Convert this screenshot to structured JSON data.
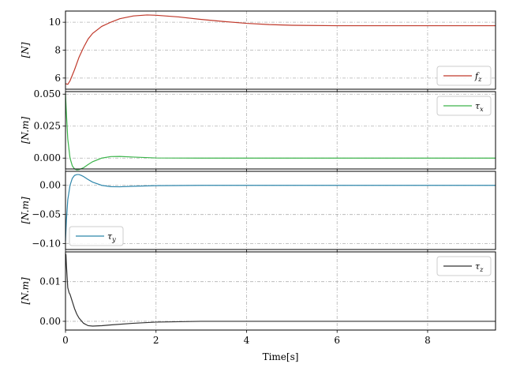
{
  "chart_data": [
    {
      "type": "line",
      "ylabel": "[N]",
      "xlim": [
        0,
        9.5
      ],
      "ylim": [
        5.2,
        10.8
      ],
      "yticks": [
        6,
        8,
        10
      ],
      "ytick_labels": [
        "6",
        "8",
        "10"
      ],
      "grid": true,
      "legend_position": "bottom-right",
      "series": [
        {
          "name": "f_z",
          "legend": "fz",
          "color": "#c0392b",
          "x": [
            0,
            0.05,
            0.1,
            0.2,
            0.3,
            0.4,
            0.5,
            0.6,
            0.8,
            1.0,
            1.2,
            1.5,
            1.8,
            2.0,
            2.5,
            3.0,
            3.5,
            4.0,
            4.5,
            5.0,
            6.0,
            7.0,
            8.0,
            9.5
          ],
          "y": [
            5.6,
            5.55,
            5.8,
            6.6,
            7.5,
            8.2,
            8.8,
            9.2,
            9.7,
            10.0,
            10.25,
            10.45,
            10.52,
            10.5,
            10.38,
            10.2,
            10.05,
            9.92,
            9.83,
            9.78,
            9.75,
            9.75,
            9.75,
            9.75
          ]
        }
      ]
    },
    {
      "type": "line",
      "ylabel": "[N.m]",
      "xlim": [
        0,
        9.5
      ],
      "ylim": [
        -0.0085,
        0.052
      ],
      "yticks": [
        0.0,
        0.025,
        0.05
      ],
      "ytick_labels": [
        "0.000",
        "0.025",
        "0.050"
      ],
      "grid": true,
      "legend_position": "top-right",
      "series": [
        {
          "name": "tau_x",
          "legend": "τx",
          "color": "#3cb44b",
          "x": [
            0,
            0.02,
            0.05,
            0.1,
            0.15,
            0.2,
            0.25,
            0.3,
            0.4,
            0.5,
            0.6,
            0.8,
            1.0,
            1.2,
            1.5,
            2.0,
            3.0,
            5.0,
            9.5
          ],
          "y": [
            0.05,
            0.035,
            0.015,
            0.0,
            -0.006,
            -0.0085,
            -0.0092,
            -0.009,
            -0.0075,
            -0.005,
            -0.0028,
            0.0,
            0.0012,
            0.0013,
            0.0008,
            0.0001,
            0.0,
            0.0,
            0.0
          ]
        }
      ]
    },
    {
      "type": "line",
      "ylabel": "[N.m]",
      "xlim": [
        0,
        9.5
      ],
      "ylim": [
        -0.11,
        0.024
      ],
      "yticks": [
        -0.1,
        -0.05,
        0.0
      ],
      "ytick_labels": [
        "−0.10",
        "−0.05",
        "0.00"
      ],
      "grid": true,
      "legend_position": "bottom-left",
      "series": [
        {
          "name": "tau_y",
          "legend": "τy",
          "color": "#2e86ab",
          "x": [
            0,
            0.02,
            0.05,
            0.1,
            0.15,
            0.2,
            0.25,
            0.3,
            0.35,
            0.4,
            0.5,
            0.6,
            0.8,
            1.0,
            1.2,
            1.5,
            2.0,
            3.0,
            5.0,
            9.5
          ],
          "y": [
            -0.095,
            -0.06,
            -0.025,
            0.0,
            0.012,
            0.017,
            0.0185,
            0.0185,
            0.017,
            0.015,
            0.01,
            0.0055,
            0.0,
            -0.0022,
            -0.0025,
            -0.0015,
            -0.0005,
            0.0,
            0.0,
            0.0
          ]
        }
      ]
    },
    {
      "type": "line",
      "ylabel": "[N.m]",
      "xlabel": "Time[s]",
      "xlim": [
        0,
        9.5
      ],
      "ylim": [
        -0.0022,
        0.0175
      ],
      "yticks": [
        0.0,
        0.01
      ],
      "ytick_labels": [
        "0.00",
        "0.01"
      ],
      "xticks": [
        0,
        2,
        4,
        6,
        8
      ],
      "xtick_labels": [
        "0",
        "2",
        "4",
        "6",
        "8"
      ],
      "grid": true,
      "legend_position": "top-right",
      "series": [
        {
          "name": "tau_z",
          "legend": "τz",
          "color": "#333333",
          "x": [
            0,
            0.01,
            0.02,
            0.05,
            0.08,
            0.1,
            0.15,
            0.2,
            0.25,
            0.3,
            0.4,
            0.5,
            0.6,
            0.8,
            1.0,
            1.5,
            2.0,
            2.5,
            3.0,
            4.0,
            5.0,
            9.5
          ],
          "y": [
            0.017,
            0.0168,
            0.0142,
            0.0085,
            0.0072,
            0.0068,
            0.005,
            0.0032,
            0.0018,
            0.0008,
            -0.0005,
            -0.0011,
            -0.0012,
            -0.0011,
            -0.0009,
            -0.0005,
            -0.0002,
            -0.0001,
            0.0,
            0.0,
            0.0,
            0.0
          ]
        }
      ]
    }
  ]
}
